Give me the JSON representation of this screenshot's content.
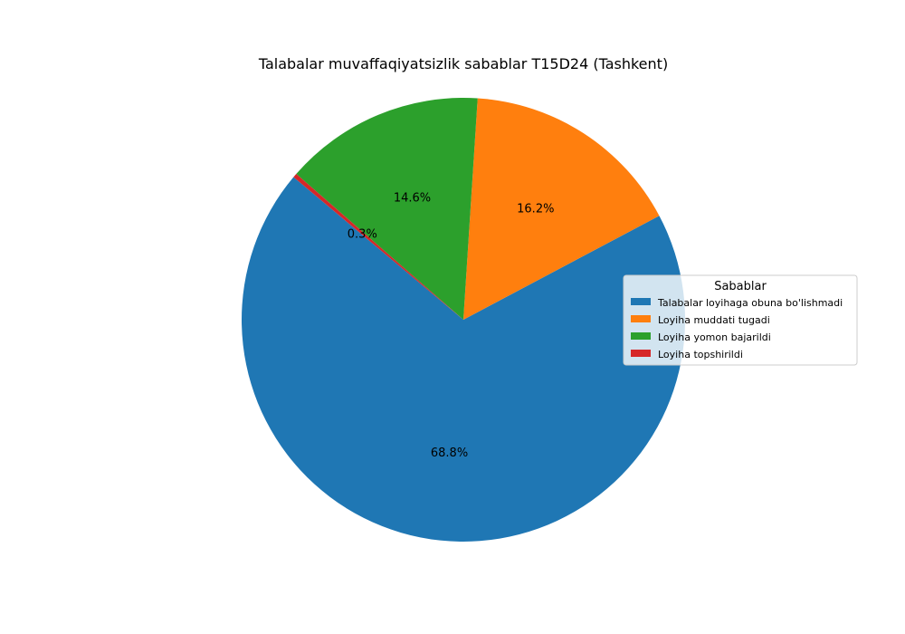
{
  "chart_data": {
    "type": "pie",
    "title": "Talabalar muvaffaqiyatsizlik sabablar T15D24 (Tashkent)",
    "labels": [
      "Talabalar loyihaga obuna bo'lishmadi",
      "Loyiha muddati tugadi",
      "Loyiha yomon bajarildi",
      "Loyiha topshirildi"
    ],
    "values": [
      68.8,
      16.2,
      14.6,
      0.3
    ],
    "percent_labels": [
      "68.8%",
      "16.2%",
      "14.6%",
      "0.3%"
    ],
    "colors": [
      "#1f77b4",
      "#ff7f0e",
      "#2ca02c",
      "#d62728"
    ],
    "legend": {
      "title": "Sabablar",
      "placement": "center-right"
    }
  }
}
